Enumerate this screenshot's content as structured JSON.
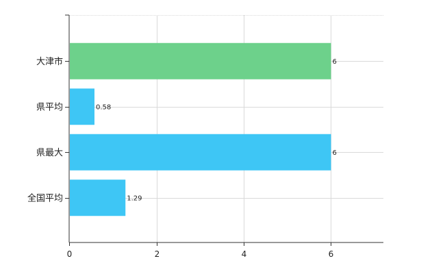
{
  "chart_data": {
    "type": "bar",
    "orientation": "horizontal",
    "categories": [
      "大津市",
      "県平均",
      "県最大",
      "全国平均"
    ],
    "values": [
      6,
      0.58,
      6,
      1.29
    ],
    "value_labels": [
      "6",
      "0.58",
      "6",
      "1.29"
    ],
    "bar_colors": [
      "#6dd18b",
      "#3ec6f5",
      "#3ec6f5",
      "#3ec6f5"
    ],
    "xlim": [
      0,
      7.2
    ],
    "xticks": [
      0,
      2,
      4,
      6
    ],
    "xtick_labels": [
      "0",
      "2",
      "4",
      "6"
    ],
    "title": "",
    "xlabel": "",
    "ylabel": "",
    "grid": true,
    "legend": false
  }
}
